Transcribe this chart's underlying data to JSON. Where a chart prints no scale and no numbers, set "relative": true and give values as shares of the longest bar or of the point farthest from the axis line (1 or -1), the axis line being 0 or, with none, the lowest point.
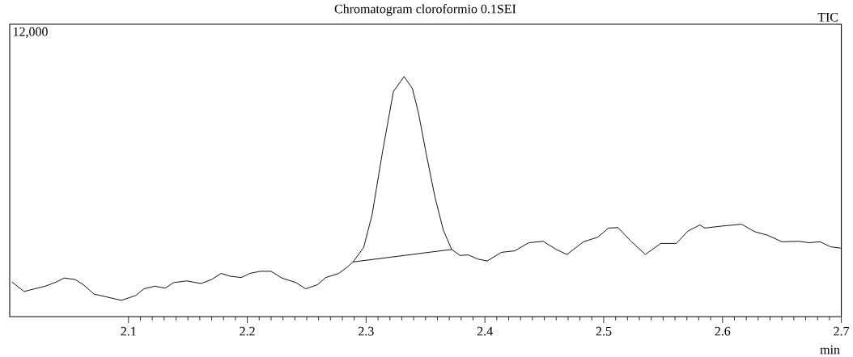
{
  "chart_data": {
    "type": "line",
    "title": "Chromatogram cloroformio 0.1SEI",
    "xlabel": "min",
    "relative": true,
    "annotations": [
      "12,000",
      "TIC"
    ],
    "xlim": [
      2.0,
      2.7
    ],
    "xticks": [
      2.1,
      2.2,
      2.3,
      2.4,
      2.5,
      2.6,
      2.7
    ],
    "series": [
      {
        "color": "#000000",
        "x": [
          2.002,
          2.012,
          2.021,
          2.03,
          2.039,
          2.046,
          2.055,
          2.062,
          2.071,
          2.081,
          2.094,
          2.106,
          2.113,
          2.122,
          2.131,
          2.138,
          2.149,
          2.161,
          2.17,
          2.178,
          2.186,
          2.195,
          2.202,
          2.211,
          2.22,
          2.229,
          2.241,
          2.249,
          2.259,
          2.266,
          2.277,
          2.284,
          2.289,
          2.298,
          2.305,
          2.314,
          2.323,
          2.332,
          2.339,
          2.344,
          2.351,
          2.358,
          2.365,
          2.372,
          2.379,
          2.386,
          2.394,
          2.402,
          2.414,
          2.425,
          2.437,
          2.449,
          2.46,
          2.469,
          2.483,
          2.495,
          2.504,
          2.512,
          2.523,
          2.535,
          2.548,
          2.561,
          2.571,
          2.581,
          2.585,
          2.599,
          2.616,
          2.627,
          2.638,
          2.65,
          2.664,
          2.673,
          2.682,
          2.691,
          2.7
        ],
        "values": [
          0.144,
          0.105,
          0.116,
          0.127,
          0.144,
          0.161,
          0.155,
          0.133,
          0.094,
          0.083,
          0.068,
          0.088,
          0.116,
          0.127,
          0.119,
          0.142,
          0.149,
          0.138,
          0.155,
          0.18,
          0.168,
          0.163,
          0.18,
          0.189,
          0.189,
          0.161,
          0.142,
          0.116,
          0.133,
          0.163,
          0.18,
          0.206,
          0.228,
          0.289,
          0.424,
          0.692,
          0.938,
          1.0,
          0.949,
          0.85,
          0.668,
          0.497,
          0.36,
          0.28,
          0.255,
          0.257,
          0.24,
          0.232,
          0.268,
          0.274,
          0.308,
          0.314,
          0.28,
          0.259,
          0.312,
          0.331,
          0.369,
          0.371,
          0.314,
          0.259,
          0.305,
          0.305,
          0.357,
          0.382,
          0.369,
          0.377,
          0.385,
          0.354,
          0.339,
          0.312,
          0.314,
          0.308,
          0.312,
          0.291,
          0.285
        ]
      },
      {
        "color": "#000000",
        "x": [
          2.289,
          2.372
        ],
        "values": [
          0.228,
          0.28
        ]
      }
    ]
  }
}
